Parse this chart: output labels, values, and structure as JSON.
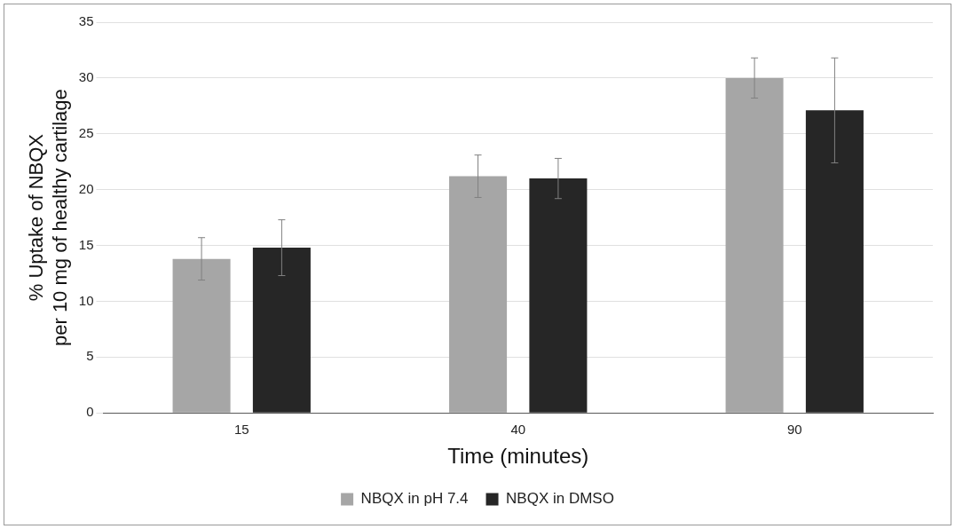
{
  "chart_data": {
    "type": "bar",
    "xlabel": "Time (minutes)",
    "ylabel": "% Uptake of NBQX\nper 10 mg of healthy cartilage",
    "categories": [
      "15",
      "40",
      "90"
    ],
    "series": [
      {
        "name": "NBQX in pH 7.4",
        "color": "#a6a6a6",
        "values": [
          13.8,
          21.2,
          30.0
        ],
        "errors": [
          1.9,
          1.9,
          1.8
        ]
      },
      {
        "name": "NBQX in DMSO",
        "color": "#262626",
        "values": [
          14.8,
          21.0,
          27.1
        ],
        "errors": [
          2.5,
          1.8,
          4.7
        ]
      }
    ],
    "ylim": [
      0,
      35
    ],
    "yticks": [
      0,
      5,
      10,
      15,
      20,
      25,
      30,
      35
    ],
    "grid": "y",
    "legend": "bottom"
  }
}
